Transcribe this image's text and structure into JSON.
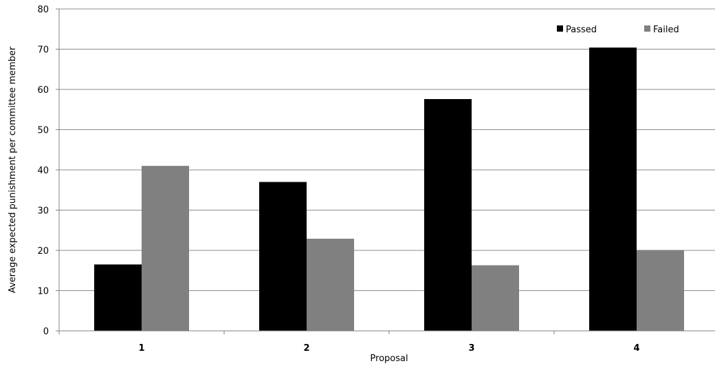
{
  "chart_data": {
    "type": "bar",
    "categories": [
      "1",
      "2",
      "3",
      "4"
    ],
    "series": [
      {
        "name": "Passed",
        "values": [
          16.5,
          37,
          57.6,
          70.4
        ],
        "color": "#000000"
      },
      {
        "name": "Failed",
        "values": [
          41,
          22.9,
          16.3,
          20.1
        ],
        "color": "#808080"
      }
    ],
    "xlabel": "Proposal",
    "ylabel": "Average expected punishment per committee member",
    "ylim": [
      0,
      80
    ],
    "yticks": [
      0,
      10,
      20,
      30,
      40,
      50,
      60,
      70,
      80
    ],
    "grid": true,
    "legend_position": "top-right"
  }
}
